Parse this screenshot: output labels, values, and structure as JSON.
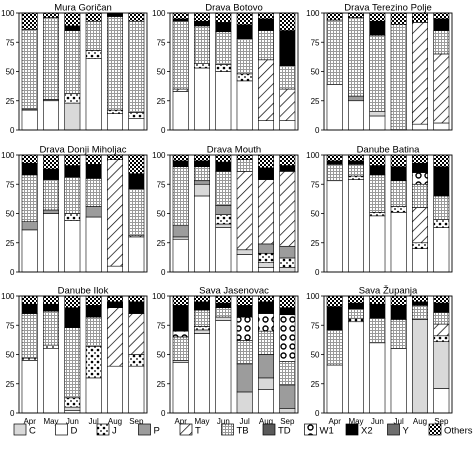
{
  "chart_data": {
    "type": "bar",
    "stacked": true,
    "categories": [
      "Apr",
      "May",
      "Jun",
      "Jul",
      "Aug",
      "Sep"
    ],
    "ylim": [
      0,
      100
    ],
    "yticks": [
      0,
      25,
      50,
      75,
      100
    ],
    "legend_placement": "bottom",
    "stack_order": [
      "D",
      "C",
      "J",
      "P",
      "T",
      "TB",
      "TD",
      "W1",
      "X2",
      "Y",
      "Others"
    ],
    "legend": [
      {
        "key": "C",
        "label": "C",
        "style": "light"
      },
      {
        "key": "D",
        "label": "D",
        "style": "white"
      },
      {
        "key": "J",
        "label": "J",
        "style": "bigdots"
      },
      {
        "key": "P",
        "label": "P",
        "style": "gray"
      },
      {
        "key": "T",
        "label": "T",
        "style": "diag"
      },
      {
        "key": "TB",
        "label": "TB",
        "style": "dense"
      },
      {
        "key": "TD",
        "label": "TD",
        "style": "dark"
      },
      {
        "key": "W1",
        "label": "W1",
        "style": "circles"
      },
      {
        "key": "X2",
        "label": "X2",
        "style": "black"
      },
      {
        "key": "Y",
        "label": "Y",
        "style": "darkgray"
      },
      {
        "key": "Others",
        "label": "Others",
        "style": "check"
      }
    ],
    "panels": [
      {
        "title": "Mura Goričan",
        "bars": [
          {
            "D": 17,
            "P": 1,
            "TB": 68,
            "Others": 14
          },
          {
            "D": 25,
            "P": 1,
            "TB": 70,
            "Others": 4
          },
          {
            "D": 0,
            "C": 23,
            "J": 8,
            "TB": 54,
            "X2": 4,
            "Others": 11
          },
          {
            "D": 61,
            "J": 7,
            "TB": 25,
            "Others": 7
          },
          {
            "D": 14,
            "J": 3,
            "TB": 80,
            "X2": 3
          },
          {
            "D": 10,
            "J": 5,
            "TB": 78,
            "Others": 7
          }
        ]
      },
      {
        "title": "Drava Botovo",
        "bars": [
          {
            "D": 33,
            "T": 2,
            "TB": 58,
            "X2": 2,
            "Others": 5
          },
          {
            "D": 53,
            "J": 4,
            "TB": 32,
            "X2": 4,
            "Others": 7
          },
          {
            "D": 50,
            "J": 6,
            "TB": 28,
            "X2": 8,
            "Others": 8
          },
          {
            "D": 42,
            "J": 6,
            "TB": 30,
            "X2": 12,
            "Others": 10
          },
          {
            "D": 8,
            "T": 52,
            "TB": 25,
            "X2": 10,
            "Others": 5
          },
          {
            "D": 8,
            "T": 27,
            "TB": 20,
            "X2": 30,
            "Others": 15
          }
        ]
      },
      {
        "title": "Drava Terezino Polje",
        "bars": [
          {
            "D": 39,
            "TB": 55,
            "Others": 6
          },
          {
            "D": 25,
            "P": 4,
            "TB": 67,
            "Others": 4
          },
          {
            "D": 12,
            "C": 4,
            "TB": 65,
            "X2": 12,
            "Others": 7
          },
          {
            "D": 0,
            "TB": 90,
            "Others": 10
          },
          {
            "D": 5,
            "T": 87,
            "Others": 8
          },
          {
            "D": 6,
            "T": 59,
            "TB": 20,
            "X2": 10,
            "Others": 5
          }
        ]
      },
      {
        "title": "Drava Donji Miholjac",
        "bars": [
          {
            "D": 36,
            "P": 7,
            "TB": 40,
            "X2": 10,
            "Others": 7
          },
          {
            "D": 50,
            "P": 3,
            "TB": 26,
            "X2": 9,
            "Others": 12
          },
          {
            "D": 44,
            "J": 6,
            "TB": 31,
            "X2": 10,
            "Others": 9
          },
          {
            "D": 47,
            "P": 9,
            "TB": 24,
            "X2": 12,
            "Others": 8
          },
          {
            "D": 5,
            "T": 91,
            "Others": 4
          },
          {
            "D": 30,
            "T": 1,
            "TB": 40,
            "X2": 13,
            "Others": 16
          }
        ]
      },
      {
        "title": "Drava Mouth",
        "bars": [
          {
            "C": 2,
            "D": 28,
            "P": 10,
            "TB": 50,
            "X2": 5,
            "Others": 5
          },
          {
            "C": 10,
            "D": 65,
            "P": 3,
            "TB": 12,
            "X2": 5,
            "Others": 5
          },
          {
            "C": 3,
            "D": 38,
            "P": 8,
            "J": 8,
            "TB": 29,
            "X2": 8,
            "Others": 6
          },
          {
            "C": 4,
            "D": 15,
            "T": 67,
            "TB": 10,
            "Others": 4
          },
          {
            "C": 4,
            "D": 4,
            "P": 8,
            "J": 8,
            "T": 55,
            "X2": 10,
            "Others": 11
          },
          {
            "C": 4,
            "P": 10,
            "J": 8,
            "T": 64,
            "X2": 5,
            "Others": 9
          }
        ]
      },
      {
        "title": "Danube Batina",
        "bars": [
          {
            "D": 78,
            "TB": 14,
            "X2": 3,
            "Others": 5
          },
          {
            "D": 79,
            "J": 3,
            "TB": 10,
            "X2": 3,
            "Others": 5
          },
          {
            "D": 48,
            "J": 3,
            "TB": 32,
            "X2": 8,
            "Others": 9
          },
          {
            "D": 51,
            "J": 5,
            "TB": 22,
            "X2": 12,
            "Others": 10
          },
          {
            "D": 20,
            "J": 5,
            "T": 30,
            "W1": 10,
            "TB": 20,
            "X2": 8,
            "Others": 7
          },
          {
            "D": 38,
            "J": 7,
            "TB": 20,
            "X2": 25,
            "Others": 10
          }
        ]
      },
      {
        "title": "Danube Ilok",
        "bars": [
          {
            "D": 45,
            "J": 2,
            "TB": 38,
            "X2": 8,
            "Others": 7
          },
          {
            "D": 55,
            "J": 3,
            "TB": 29,
            "X2": 6,
            "Others": 7
          },
          {
            "C": 3,
            "D": 2,
            "J": 8,
            "TB": 60,
            "X2": 17,
            "Others": 10
          },
          {
            "D": 30,
            "J": 27,
            "TB": 25,
            "X2": 10,
            "Others": 8
          },
          {
            "D": 40,
            "T": 50,
            "X2": 5,
            "Others": 5
          },
          {
            "D": 40,
            "J": 10,
            "T": 35,
            "X2": 10,
            "Others": 5
          }
        ]
      },
      {
        "title": "Sava Jasenovac",
        "bars": [
          {
            "C": 2,
            "D": 43,
            "W1": 5,
            "TB": 20,
            "X2": 22,
            "Others": 8
          },
          {
            "C": 3,
            "D": 68,
            "J": 3,
            "TB": 14,
            "X2": 7,
            "Others": 5
          },
          {
            "C": 3,
            "D": 79,
            "TB": 8,
            "X2": 4,
            "Others": 6
          },
          {
            "C": 18,
            "P": 24,
            "W1": 20,
            "TB": 20,
            "X2": 10,
            "Others": 8
          },
          {
            "C": 10,
            "D": 20,
            "P": 20,
            "W1": 15,
            "TB": 20,
            "X2": 10,
            "Others": 5
          },
          {
            "C": 4,
            "P": 20,
            "W1": 40,
            "TB": 20,
            "X2": 6,
            "Others": 10
          }
        ]
      },
      {
        "title": "Sava Županja",
        "bars": [
          {
            "D": 41,
            "TB": 30,
            "X2": 20,
            "Others": 9
          },
          {
            "D": 78,
            "J": 3,
            "TB": 8,
            "X2": 5,
            "Others": 6
          },
          {
            "D": 60,
            "TB": 21,
            "X2": 12,
            "Others": 7
          },
          {
            "D": 55,
            "TB": 25,
            "X2": 12,
            "Others": 8
          },
          {
            "C": 80,
            "TB": 12,
            "X2": 3,
            "Others": 5
          },
          {
            "C": 40,
            "D": 21,
            "J": 5,
            "T": 10,
            "TB": 10,
            "X2": 8,
            "Others": 6
          }
        ]
      }
    ]
  }
}
